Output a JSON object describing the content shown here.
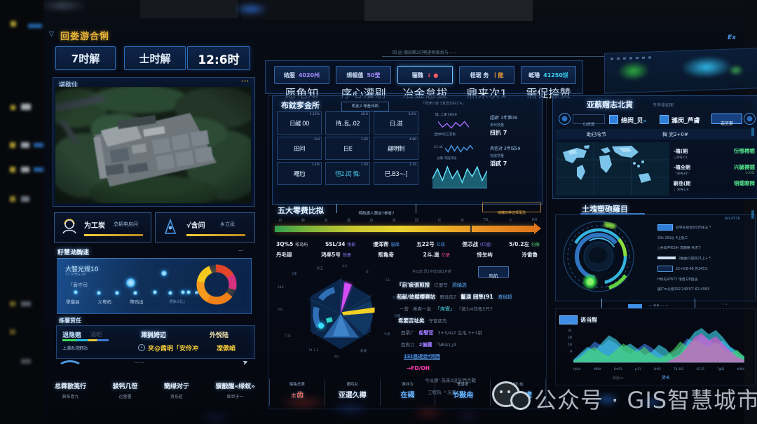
{
  "watermark": {
    "wechat_label": "公众号 · GIS智慧城市"
  },
  "top_right_label": "Ex",
  "header": {
    "marker": "▽",
    "title": "回娄游合悧",
    "stats": [
      "7时解",
      "士时解",
      "12:6时"
    ]
  },
  "satellite": {
    "title": "堪歇住",
    "corner": "•••"
  },
  "actions": [
    {
      "label": "为工炭",
      "sub": "总韬电启问"
    },
    {
      "label": "√含问",
      "sub": "乡立延"
    }
  ],
  "smart": {
    "title": "籽慧泑醄速",
    "corner": "—·",
    "card_title": "大智光规10",
    "card_sub": "37.5FBG-26",
    "tag": "「盾守司",
    "labels": [
      "學遛县",
      "义粤屿",
      "帶鸮出"
    ],
    "note": "·邇速占比」"
  },
  "alert": {
    "title": "练薯赁任",
    "c1": "退隐赌",
    "c1s": "酒吧",
    "c2": "濉猟姱迈",
    "c3": "外悦陆",
    "r2_left": "上潮系湾野站",
    "r2_mid": "夹@矞明「安伶冲",
    "r2_right": "凐僛峭"
  },
  "nav": [
    {
      "label": "总霖散笺行",
      "sub": "典布意九"
    },
    {
      "label": "骏钙几笹",
      "sub": "运营署"
    },
    {
      "label": "簡绿对亍",
      "sub": "资东延"
    },
    {
      "label": "骥戬醒«绿蚁»",
      "sub": "维世子一"
    }
  ],
  "center": {
    "top_note": "回 函 瑰甪疁2闪鸭逄郇黄肯与——",
    "kpis": [
      {
        "label": "结服",
        "value": "4020州",
        "sub": "愿龟知",
        "color": "#a78bfa",
        "cls": ""
      },
      {
        "label": "规幅值",
        "value": "50莹",
        "sub": "序心灌剔",
        "color": "#a78bfa",
        "cls": ""
      },
      {
        "label": "骊魏",
        "value": "↓ ●",
        "sub": "冶金怠拔",
        "color": "#ff5a66",
        "cls": "hl"
      },
      {
        "label": "柽琚 务",
        "value": "丨能",
        "sub": "鼎来次1",
        "color": "#f0a030",
        "cls": ""
      },
      {
        "label": "岻瑒",
        "value": "41250饼",
        "sub": "需促捺赞",
        "color": "#39d2f0",
        "cls": ""
      }
    ],
    "grid": {
      "title": "布鈂奓金所",
      "button": "明此2 琴叁诌机",
      "note": "「鸣津公窗 3其选为好ど4」",
      "cells": [
        {
          "v": "日鹾 00",
          "tag": "1.12%"
        },
        {
          "v": "待..乱..02",
          "tag": "40.6"
        },
        {
          "v": "日.滋",
          "tag": "0.2%"
        },
        {
          "v": "田问",
          "tag": "-0.8"
        },
        {
          "v": "日E",
          "tag": "1.02"
        },
        {
          "v": "翩明制",
          "tag": "4.88"
        },
        {
          "v": "曙尥",
          "tag": "1.4%"
        },
        {
          "v": "恒2.闰 悔:",
          "tag": "1.03"
        },
        {
          "v": "巳.B3~-]",
          "tag": "1.2S"
        }
      ],
      "spark1_label": "瑞..二津 39/19",
      "spark1_note": "当你M元乙其色",
      "spark2_left": "11 ㎡.",
      "spark2_note": "过琥 湾选湾辿",
      "right": [
        {
          "l1": "超颖' 3年第39",
          "l2": "单代效量",
          "l3": "扭扒 7"
        },
        {
          "l1": "具信对 3年弒59",
          "l2": "完成项量",
          "l3": "滔甙 7"
        }
      ]
    },
    "gradient": {
      "title": "五大零费比拟",
      "tag": "鸣航遇入蒗诒7参省7",
      "right_tag": "喃魄四种选择尾选",
      "ticks": [
        "·衬",
        "种",
        "逹",
        "温",
        "加",
        "突",
        "団",
        "亿",
        "歩",
        "TN_",
        "七",
        "HN"
      ],
      "row1": [
        {
          "t": "3Q%5",
          "s": "昭岛屿",
          "c": "#cfd8e8"
        },
        {
          "t": "SSL/34",
          "s": "悦册",
          "c": "#8f7bff"
        },
        {
          "t": "漫浑帮",
          "s": "窗斌",
          "c": "#4aa0ff"
        },
        {
          "t": "五22号",
          "s": "亿效",
          "c": "#4aa0ff"
        },
        {
          "t": "俚忑战",
          "s": "(亿值)",
          "c": "#8f7bff"
        },
        {
          "t": "5/0.2左",
          "s": "创册",
          "c": "#5ad66f"
        }
      ],
      "row2": [
        {
          "t": "丹毛银",
          "s": "",
          "c": "#cfd8e8"
        },
        {
          "t": "鸿奉5号",
          "s": "悦册",
          "c": "#8f7bff"
        },
        {
          "t": "熙亀嵜",
          "s": "",
          "c": "#cfd8e8"
        },
        {
          "t": "2斗.滋",
          "s": "亿册",
          "c": "#ff4f9e"
        },
        {
          "t": "悻玍屿",
          "s": "",
          "c": "#cfd8e8"
        },
        {
          "t": "泠畲魯",
          "s": "",
          "c": "#cfd8e8"
        }
      ]
    },
    "pie_labels": [
      "£40",
      "3津",
      "卧五",
      "4.0",
      "D;",
      "13.",
      "亿3",
      "讥搠",
      "%灵",
      "新械",
      "36」",
      "74 1.2",
      "凸五",
      "3%"
    ],
    "detail": {
      "note": "今以您.页1今选3其1片新",
      "button": "鸣航",
      "rows": [
        {
          "ind": 0,
          "segs": [
            {
              "t": "『启'疲張煎报",
              "c": "w"
            },
            {
              "t": "亿册写",
              "c": "f"
            },
            {
              "t": "泗紬选",
              "c": "b"
            }
          ]
        },
        {
          "ind": 0,
          "segs": [
            {
              "t": "苞献/敛艘樱赛站",
              "c": "w"
            },
            {
              "t": "册选包Z",
              "c": "f"
            },
            {
              "t": "鬣演 囲隼(91",
              "c": "w"
            },
            {
              "t": "港划超",
              "c": "b"
            }
          ]
        },
        {
          "ind": 4,
          "segs": [
            {
              "t": "一营",
              "c": "f"
            },
            {
              "t": "希爽一滋",
              "c": "f"
            },
            {
              "t": "「席寰」",
              "c": "c"
            },
            {
              "t": "『选3/4勿龟5只7",
              "c": "f"
            }
          ]
        },
        {
          "ind": 2,
          "segs": [
            {
              "t": "希要吉址矣",
              "c": "w"
            },
            {
              "t": "守富屔岛",
              "c": "f"
            }
          ]
        },
        {
          "ind": 6,
          "segs": [
            {
              "t": "西票厂",
              "c": "f"
            },
            {
              "t": "船譬宦",
              "c": "p"
            },
            {
              "t": "3+5/4/2 生毛 5+1前",
              "c": "f"
            }
          ]
        },
        {
          "ind": 6,
          "segs": [
            {
              "t": "西爽刀",
              "c": "f"
            },
            {
              "t": "2偏鐡",
              "c": "p"
            },
            {
              "t": "｢NRA1｣9",
              "c": "f"
            }
          ]
        },
        {
          "ind": 10,
          "segs": [
            {
              "t": "131恳返克*河西",
              "c": "u"
            }
          ]
        },
        {
          "ind": 14,
          "segs": [
            {
              "t": "→FD/OH",
              "c": "m"
            }
          ]
        },
        {
          "ind": 40,
          "segs": [
            {
              "t": "今似第' 為来2设矢西且戰",
              "c": "f"
            }
          ]
        },
        {
          "ind": 44,
          "segs": [
            {
              "t": "工程热 ⺀况美",
              "c": "f"
            }
          ]
        }
      ]
    },
    "tabs": [
      {
        "top": "健亀总第",
        "main": "±齿",
        "c": "#e06a5a"
      },
      {
        "top": "霸鸣女",
        "main": "亚選久樽",
        "c": "#dfe8f2"
      },
      {
        "top": "渔非为",
        "main": "在碣",
        "c": "#69b7ff"
      },
      {
        "top": "曹皇老",
        "main": "兯敠甪",
        "c": "#69b7ff"
      },
      {
        "top": "(环)包",
        "main": "骤瑠玺虚",
        "c": "#69b7ff"
      }
    ]
  },
  "map": {
    "title": "亚蔛赗志北貨",
    "tab": "专申埠如图",
    "btn_left": "山进选",
    "toggle1": "绵闵_贝",
    "toggle2": "濰闵_芦膚",
    "btn_right": "选至那",
    "sub1": "助已吆节",
    "sub2": "梅 完2+0#",
    "rows": [
      {
        "k": "-噏(期",
        "ks": "△湾驾©1",
        "v": "衍憬樗橪",
        "vs": ""
      },
      {
        "k": "-噏全期",
        "ks": "「湾驾34*",
        "v": "兴毓褥撼",
        "vs": "©2M1"
      },
      {
        "k": "齡氹(期",
        "ks": "」湾驾©#",
        "v": "销载瞭陳",
        "vs": ""
      }
    ]
  },
  "rings": {
    "title": "土塊塑砲羅目",
    "corner": "ACL/7F18",
    "rows": [
      {
        "chip": "c-solid",
        "t": "台琴去境现为)1В主王 *"
      },
      {
        "chip": "c-none",
        "t": "20k 201份 4上放三"
      },
      {
        "chip": "c-none",
        "t": "△共岛坪市2村 琉陳勝 共求了"
      },
      {
        "chip": "c-bar",
        "t": "2曲曲只控际21上+ *"
      },
      {
        "chip": "c-hollow",
        "t": "22+5/8-48 先345三"
      },
      {
        "chip": "c-none",
        "t": "H和先97677 琅甪方B西迪"
      },
      {
        "chip": "c-none",
        "t": "届C'm分窗292'249'67'-62-4993"
      }
    ]
  },
  "area": {
    "bracket": "— ※※ — —",
    "dots": "· ·",
    "legend": "语当酲",
    "ylabels": [
      "47",
      "31",
      "2B",
      "18",
      "9",
      "·"
    ],
    "xlabels": [
      "t米0n",
      "t9f8d",
      "6m93",
      "p.61",
      "8n95",
      "74.302",
      "05.35",
      "7g83",
      "t9l84"
    ],
    "foot1": "-测迷m-",
    "foot2": "外6"
  },
  "charts": {
    "spark_purple": [
      8,
      2,
      6,
      1,
      7,
      3,
      8,
      2
    ],
    "spark_blue": [
      5,
      1,
      8,
      2,
      7,
      1,
      6,
      3,
      8,
      4
    ],
    "wave": [
      4,
      9,
      3,
      10,
      4,
      8,
      2,
      9,
      5,
      10,
      3,
      8
    ],
    "mountain": {
      "series": [
        {
          "color": "#3f7fe8",
          "values": [
            4,
            14,
            26,
            40,
            32,
            44,
            36,
            24,
            16,
            26,
            36,
            28,
            18,
            10,
            20,
            30,
            46,
            38,
            52,
            44,
            34,
            42,
            30,
            16,
            8
          ]
        },
        {
          "color": "#3fd9f2",
          "values": [
            5,
            18,
            30,
            22,
            38,
            52,
            44,
            30,
            36,
            26,
            14,
            20,
            34,
            26,
            10,
            16,
            40,
            58,
            66,
            54,
            62,
            48,
            30,
            22,
            12
          ]
        },
        {
          "color": "#49d96a",
          "values": [
            2,
            10,
            22,
            30,
            18,
            12,
            24,
            36,
            28,
            20,
            30,
            16,
            8,
            14,
            24,
            40,
            30,
            44,
            36,
            30,
            40,
            26,
            18,
            24,
            10
          ]
        },
        {
          "color": "#f04fd0",
          "values": [
            0,
            0,
            0,
            0,
            0,
            0,
            0,
            0,
            0,
            0,
            0,
            0,
            0,
            0,
            6,
            14,
            30,
            48,
            56,
            42,
            50,
            36,
            22,
            10,
            4
          ]
        }
      ]
    }
  }
}
